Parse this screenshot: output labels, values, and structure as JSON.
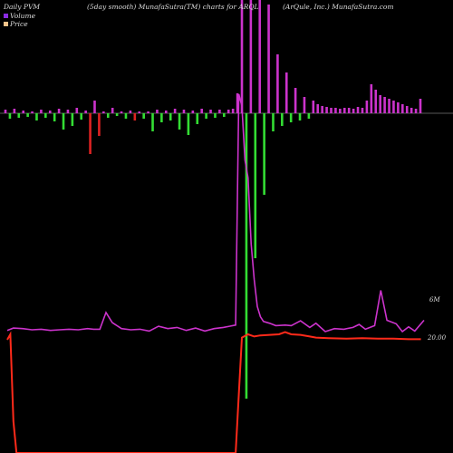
{
  "header": {
    "left": "Daily PVM",
    "center": "(5day smooth) MunafaSutra(TM) charts for ARQL",
    "right": "(ArQule, Inc.) MunafaSutra.com"
  },
  "legend": {
    "volume": "Volume",
    "price": "Price"
  },
  "colors": {
    "background": "#000000",
    "volume_up": "#cc33cc",
    "volume_down": "#33dd33",
    "volume_red": "#dd2222",
    "volume_line": "#cc33cc",
    "price_line": "#ff2a1a",
    "zero_line": "#777777",
    "legend_volume": "#8a2be2",
    "legend_price": "#f5c38a"
  },
  "chart_data": {
    "type": "bar",
    "axis_labels": {
      "volume": "6M",
      "price": "20.00"
    },
    "volume_bars": [
      {
        "color": "magenta",
        "value": 4
      },
      {
        "color": "green",
        "value": -6
      },
      {
        "color": "magenta",
        "value": 5
      },
      {
        "color": "green",
        "value": -5
      },
      {
        "color": "magenta",
        "value": 3
      },
      {
        "color": "green",
        "value": -4
      },
      {
        "color": "magenta",
        "value": 2
      },
      {
        "color": "green",
        "value": -8
      },
      {
        "color": "magenta",
        "value": 4
      },
      {
        "color": "green",
        "value": -5
      },
      {
        "color": "magenta",
        "value": 3
      },
      {
        "color": "green",
        "value": -9
      },
      {
        "color": "magenta",
        "value": 5
      },
      {
        "color": "green",
        "value": -18
      },
      {
        "color": "magenta",
        "value": 4
      },
      {
        "color": "green",
        "value": -14
      },
      {
        "color": "magenta",
        "value": 6
      },
      {
        "color": "green",
        "value": -7
      },
      {
        "color": "magenta",
        "value": 3
      },
      {
        "color": "red",
        "value": -45
      },
      {
        "color": "magenta",
        "value": 14
      },
      {
        "color": "red",
        "value": -25
      },
      {
        "color": "magenta",
        "value": 2
      },
      {
        "color": "green",
        "value": -5
      },
      {
        "color": "magenta",
        "value": 6
      },
      {
        "color": "green",
        "value": -3
      },
      {
        "color": "magenta",
        "value": 2
      },
      {
        "color": "green",
        "value": -6
      },
      {
        "color": "magenta",
        "value": 3
      },
      {
        "color": "red",
        "value": -8
      },
      {
        "color": "magenta",
        "value": 2
      },
      {
        "color": "green",
        "value": -6
      },
      {
        "color": "magenta",
        "value": 2
      },
      {
        "color": "green",
        "value": -20
      },
      {
        "color": "magenta",
        "value": 4
      },
      {
        "color": "green",
        "value": -10
      },
      {
        "color": "magenta",
        "value": 3
      },
      {
        "color": "green",
        "value": -8
      },
      {
        "color": "magenta",
        "value": 5
      },
      {
        "color": "green",
        "value": -18
      },
      {
        "color": "magenta",
        "value": 4
      },
      {
        "color": "green",
        "value": -24
      },
      {
        "color": "magenta",
        "value": 3
      },
      {
        "color": "green",
        "value": -12
      },
      {
        "color": "magenta",
        "value": 5
      },
      {
        "color": "green",
        "value": -6
      },
      {
        "color": "magenta",
        "value": 4
      },
      {
        "color": "green",
        "value": -5
      },
      {
        "color": "magenta",
        "value": 4
      },
      {
        "color": "green",
        "value": -4
      },
      {
        "color": "magenta",
        "value": 4
      },
      {
        "color": "magenta",
        "value": 5
      },
      {
        "color": "magenta",
        "value": 22
      },
      {
        "color": "magenta",
        "value": 140
      },
      {
        "color": "green",
        "value": -315
      },
      {
        "color": "magenta",
        "value": 150
      },
      {
        "color": "green",
        "value": -160
      },
      {
        "color": "magenta",
        "value": 140
      },
      {
        "color": "green",
        "value": -90
      },
      {
        "color": "magenta",
        "value": 120
      },
      {
        "color": "green",
        "value": -20
      },
      {
        "color": "magenta",
        "value": 65
      },
      {
        "color": "green",
        "value": -14
      },
      {
        "color": "magenta",
        "value": 45
      },
      {
        "color": "green",
        "value": -10
      },
      {
        "color": "magenta",
        "value": 28
      },
      {
        "color": "green",
        "value": -8
      },
      {
        "color": "magenta",
        "value": 18
      },
      {
        "color": "green",
        "value": -6
      },
      {
        "color": "magenta",
        "value": 14
      },
      {
        "color": "magenta",
        "value": 10
      },
      {
        "color": "magenta",
        "value": 8
      },
      {
        "color": "magenta",
        "value": 7
      },
      {
        "color": "magenta",
        "value": 6
      },
      {
        "color": "magenta",
        "value": 6
      },
      {
        "color": "magenta",
        "value": 5
      },
      {
        "color": "magenta",
        "value": 6
      },
      {
        "color": "magenta",
        "value": 6
      },
      {
        "color": "magenta",
        "value": 5
      },
      {
        "color": "magenta",
        "value": 7
      },
      {
        "color": "magenta",
        "value": 6
      },
      {
        "color": "magenta",
        "value": 14
      },
      {
        "color": "magenta",
        "value": 32
      },
      {
        "color": "magenta",
        "value": 26
      },
      {
        "color": "magenta",
        "value": 20
      },
      {
        "color": "magenta",
        "value": 18
      },
      {
        "color": "magenta",
        "value": 16
      },
      {
        "color": "magenta",
        "value": 14
      },
      {
        "color": "magenta",
        "value": 12
      },
      {
        "color": "magenta",
        "value": 10
      },
      {
        "color": "magenta",
        "value": 8
      },
      {
        "color": "magenta",
        "value": 6
      },
      {
        "color": "magenta",
        "value": 5
      },
      {
        "color": "magenta",
        "value": 16
      }
    ],
    "volume_line": [
      [
        0,
        5
      ],
      [
        2,
        9
      ],
      [
        5,
        8
      ],
      [
        8,
        6
      ],
      [
        11,
        7
      ],
      [
        14,
        5
      ],
      [
        17,
        6
      ],
      [
        20,
        7
      ],
      [
        23,
        6
      ],
      [
        26,
        8
      ],
      [
        28,
        7
      ],
      [
        30,
        7
      ],
      [
        32,
        35
      ],
      [
        34,
        18
      ],
      [
        37,
        8
      ],
      [
        40,
        6
      ],
      [
        43,
        7
      ],
      [
        46,
        4
      ],
      [
        49,
        12
      ],
      [
        52,
        8
      ],
      [
        55,
        10
      ],
      [
        58,
        5
      ],
      [
        61,
        9
      ],
      [
        64,
        4
      ],
      [
        67,
        8
      ],
      [
        70,
        10
      ],
      [
        72,
        12
      ],
      [
        74,
        14
      ],
      [
        75,
        400
      ],
      [
        76,
        380
      ],
      [
        77,
        290
      ],
      [
        78,
        260
      ],
      [
        79,
        150
      ],
      [
        80,
        90
      ],
      [
        81,
        45
      ],
      [
        82,
        28
      ],
      [
        83,
        20
      ],
      [
        85,
        17
      ],
      [
        87,
        13
      ],
      [
        90,
        14
      ],
      [
        92,
        13
      ],
      [
        95,
        21
      ],
      [
        98,
        10
      ],
      [
        100,
        17
      ],
      [
        103,
        3
      ],
      [
        106,
        8
      ],
      [
        109,
        7
      ],
      [
        112,
        10
      ],
      [
        114,
        15
      ],
      [
        116,
        7
      ],
      [
        119,
        13
      ],
      [
        121,
        72
      ],
      [
        123,
        22
      ],
      [
        126,
        16
      ],
      [
        128,
        3
      ],
      [
        130,
        11
      ],
      [
        132,
        4
      ],
      [
        135,
        22
      ]
    ],
    "price_line": [
      [
        0,
        20.0
      ],
      [
        1,
        21.0
      ],
      [
        2,
        5.0
      ],
      [
        3,
        -15.0
      ],
      [
        74,
        -15.0
      ],
      [
        75,
        10.0
      ],
      [
        76,
        20.4
      ],
      [
        78,
        21.0
      ],
      [
        80,
        20.6
      ],
      [
        82,
        20.8
      ],
      [
        85,
        20.9
      ],
      [
        88,
        21.0
      ],
      [
        90,
        21.4
      ],
      [
        92,
        21.0
      ],
      [
        95,
        20.9
      ],
      [
        98,
        20.6
      ],
      [
        100,
        20.4
      ],
      [
        104,
        20.3
      ],
      [
        110,
        20.2
      ],
      [
        115,
        20.3
      ],
      [
        120,
        20.2
      ],
      [
        125,
        20.2
      ],
      [
        130,
        20.1
      ],
      [
        134,
        20.1
      ]
    ]
  }
}
